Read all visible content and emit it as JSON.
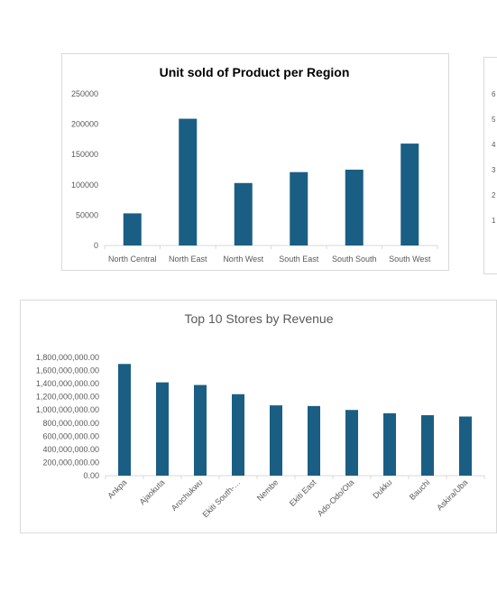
{
  "colors": {
    "bar": "#1a5e84",
    "axis": "#d9d9d9",
    "text": "#595959"
  },
  "chart_data": [
    {
      "type": "bar",
      "title": "Unit sold of Product per Region",
      "categories": [
        "North Central",
        "North East",
        "North West",
        "South East",
        "South South",
        "South West"
      ],
      "values": [
        53000,
        209000,
        103000,
        121000,
        125000,
        168000
      ],
      "ylim": [
        0,
        250000
      ],
      "yticks": [
        "0",
        "50000",
        "100000",
        "150000",
        "200000",
        "250000"
      ],
      "grid": false,
      "legend": "none"
    },
    {
      "type": "bar",
      "title": "Top 10 Stores by Revenue",
      "categories": [
        "Ankpa",
        "Ajaokuta",
        "Arochukwu",
        "Ekiti South-…",
        "Nembe",
        "Ekiti East",
        "Ado-Odo/Ota",
        "Dukku",
        "Bauchi",
        "Askira/Uba"
      ],
      "values": [
        1700000000,
        1420000000,
        1380000000,
        1240000000,
        1070000000,
        1060000000,
        1000000000,
        950000000,
        920000000,
        900000000
      ],
      "ylim": [
        0,
        1800000000
      ],
      "yticks": [
        "0.00",
        "200,000,000.00",
        "400,000,000.00",
        "600,000,000.00",
        "800,000,000.00",
        "1,000,000,000.00",
        "1,200,000,000.00",
        "1,400,000,000.00",
        "1,600,000,000.00",
        "1,800,000,000.00"
      ],
      "grid": false,
      "legend": "none"
    },
    {
      "type": "bar",
      "partially_visible": true,
      "yticks": [
        "1",
        "2",
        "3",
        "4",
        "5",
        "6"
      ]
    }
  ]
}
